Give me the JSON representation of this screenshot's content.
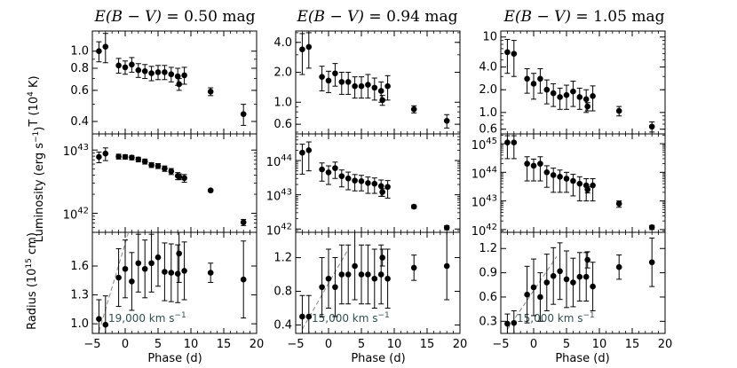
{
  "figure": {
    "ylabel_temp": "T (10",
    "ylabel_temp_exp": "4",
    "ylabel_temp_unit": " K)",
    "ylabel_lum": "Luminosity (erg s",
    "ylabel_lum_exp": "−1",
    "ylabel_lum_close": ")",
    "ylabel_rad": "Radius (10",
    "ylabel_rad_exp": "15",
    "ylabel_rad_unit": " cm)",
    "xlabel": "Phase (d)",
    "xticks": [
      "−5",
      "0",
      "5",
      "10",
      "15",
      "20"
    ],
    "panel_columns": [
      "E(B − V) = 0.50 mag",
      "E(B − V) = 0.94 mag",
      "E(B − V) = 1.05 mag"
    ]
  },
  "chart_data": [
    {
      "type": "scatter",
      "title": "E(B − V) = 0.50 mag",
      "title_ebv": "E(B − V)",
      "title_value": " = 0.50 mag",
      "xlim": [
        -5,
        20
      ],
      "phase": [
        -4,
        -3,
        -1,
        0,
        1,
        2,
        3,
        4,
        5,
        6,
        7,
        8,
        8.2,
        9,
        13,
        18
      ],
      "temperature": {
        "ylabel": "T (10^4 K)",
        "scale": "log",
        "ylim": [
          0.34,
          1.3
        ],
        "ticks": [
          0.4,
          0.6,
          0.8,
          1.0
        ],
        "tick_labels": [
          "0.4",
          "0.6",
          "0.8",
          "1.0"
        ],
        "values": [
          1.0,
          1.06,
          0.83,
          0.81,
          0.84,
          0.78,
          0.77,
          0.75,
          0.76,
          0.76,
          0.74,
          0.72,
          0.65,
          0.73,
          0.59,
          0.44
        ],
        "errors": [
          0.13,
          0.2,
          0.08,
          0.07,
          0.08,
          0.07,
          0.07,
          0.07,
          0.07,
          0.07,
          0.07,
          0.08,
          0.05,
          0.08,
          0.03,
          0.06
        ]
      },
      "luminosity": {
        "ylabel": "Luminosity (erg s^-1)",
        "scale": "log",
        "ylim": [
          5e+41,
          1.8e+43
        ],
        "ticks": [
          1e+42,
          1e+43
        ],
        "tick_labels": [
          "10^42",
          "10^43"
        ],
        "values": [
          7.8e+42,
          8.8e+42,
          7.9e+42,
          7.8e+42,
          7.6e+42,
          7.1e+42,
          6.6e+42,
          5.8e+42,
          5.6e+42,
          5.1e+42,
          4.6e+42,
          3.9e+42,
          3.8e+42,
          3.6e+42,
          2.3e+42,
          7.2e+41
        ],
        "errors": [
          1.5e+42,
          2e+42,
          7e+41,
          6e+41,
          6e+41,
          6e+41,
          6e+41,
          5e+41,
          5e+41,
          5e+41,
          5e+41,
          5e+41,
          4e+41,
          5e+41,
          1e+41,
          8e+40
        ]
      },
      "radius": {
        "ylabel": "Radius (10^15 cm)",
        "scale": "linear",
        "ylim": [
          0.9,
          1.95
        ],
        "ticks": [
          1.0,
          1.3,
          1.6
        ],
        "tick_labels": [
          "1.0",
          "1.3",
          "1.6"
        ],
        "values": [
          1.05,
          0.99,
          1.48,
          1.57,
          1.44,
          1.63,
          1.57,
          1.63,
          1.69,
          1.54,
          1.53,
          1.52,
          1.73,
          1.55,
          1.53,
          1.46
        ],
        "errors": [
          0.2,
          0.3,
          0.3,
          0.3,
          0.3,
          0.3,
          0.3,
          0.3,
          0.3,
          0.3,
          0.3,
          0.3,
          0.3,
          0.3,
          0.1,
          0.4
        ],
        "velocity_line": {
          "x": [
            -4,
            0.5
          ],
          "y": [
            0.92,
            1.95
          ]
        },
        "annotation": "19,000 km s",
        "annotation_exp": "−1"
      }
    },
    {
      "type": "scatter",
      "title": "E(B − V) = 0.94 mag",
      "title_ebv": "E(B − V)",
      "title_value": " = 0.94 mag",
      "xlim": [
        -5,
        20
      ],
      "phase": [
        -4,
        -3,
        -1,
        0,
        1,
        2,
        3,
        4,
        5,
        6,
        7,
        8,
        8.2,
        9,
        13,
        18
      ],
      "temperature": {
        "ylabel": "T (10^4 K)",
        "scale": "log",
        "ylim": [
          0.48,
          5.2
        ],
        "ticks": [
          0.6,
          1.0,
          2.0,
          4.0
        ],
        "tick_labels": [
          "0.6",
          "1.0",
          "2.0",
          "4.0"
        ],
        "values": [
          3.4,
          3.6,
          1.8,
          1.65,
          1.95,
          1.6,
          1.6,
          1.45,
          1.45,
          1.5,
          1.4,
          1.3,
          1.05,
          1.45,
          0.85,
          0.65
        ],
        "errors": [
          1.5,
          1.4,
          0.5,
          0.4,
          0.5,
          0.4,
          0.4,
          0.35,
          0.35,
          0.4,
          0.35,
          0.3,
          0.12,
          0.4,
          0.07,
          0.1
        ]
      },
      "luminosity": {
        "ylabel": "Luminosity (erg s^-1)",
        "scale": "log",
        "ylim": [
          8e+41,
          6e+44
        ],
        "ticks": [
          1e+42,
          1e+43,
          1e+44
        ],
        "tick_labels": [
          "10^42",
          "10^43",
          "10^44"
        ],
        "values": [
          1.7e+44,
          2e+44,
          5.5e+43,
          4.5e+43,
          6e+43,
          3.5e+43,
          3e+43,
          2.6e+43,
          2.5e+43,
          2.2e+43,
          2.1e+43,
          1.8e+43,
          1.2e+43,
          1.7e+43,
          4.5e+42,
          1.1e+42
        ],
        "errors": [
          1.3e+44,
          1.5e+44,
          3e+43,
          2.5e+43,
          3e+43,
          1.8e+43,
          1.6e+43,
          1.3e+43,
          1.2e+43,
          1.1e+43,
          1e+43,
          9e+42,
          3e+42,
          9e+42,
          5e+41,
          1.5e+41
        ]
      },
      "radius": {
        "ylabel": "Radius (10^15 cm)",
        "scale": "linear",
        "ylim": [
          0.3,
          1.5
        ],
        "ticks": [
          0.4,
          0.8,
          1.2
        ],
        "tick_labels": [
          "0.4",
          "0.8",
          "1.2"
        ],
        "values": [
          0.5,
          0.5,
          0.85,
          0.95,
          0.85,
          1.0,
          1.0,
          1.1,
          1.0,
          1.0,
          0.95,
          1.0,
          1.2,
          0.95,
          1.08,
          1.1
        ],
        "errors": [
          0.25,
          0.25,
          0.35,
          0.35,
          0.35,
          0.35,
          0.35,
          0.4,
          0.35,
          0.35,
          0.35,
          0.35,
          0.1,
          0.35,
          0.15,
          0.4
        ],
        "velocity_line": {
          "x": [
            -4,
            3
          ],
          "y": [
            0.35,
            1.3
          ]
        },
        "annotation": "15,000 km s",
        "annotation_exp": "−1"
      }
    },
    {
      "type": "scatter",
      "title": "E(B − V) = 1.05 mag",
      "title_ebv": "E(B − V)",
      "title_value": " = 1.05 mag",
      "xlim": [
        -5,
        20
      ],
      "phase": [
        -4,
        -3,
        -1,
        0,
        1,
        2,
        3,
        4,
        5,
        6,
        7,
        8,
        8.2,
        9,
        13,
        18
      ],
      "temperature": {
        "ylabel": "T (10^4 K)",
        "scale": "log",
        "ylim": [
          0.52,
          12
        ],
        "ticks": [
          0.6,
          1.0,
          2.0,
          4.0,
          10
        ],
        "tick_labels": [
          "0.6",
          "1.0",
          "2.0",
          "4.0",
          "10"
        ],
        "values": [
          6.3,
          6.0,
          2.8,
          2.4,
          2.8,
          2.0,
          1.8,
          1.6,
          1.7,
          1.9,
          1.6,
          1.5,
          1.2,
          1.65,
          1.05,
          0.65
        ],
        "errors": [
          3.0,
          3.0,
          1.0,
          0.9,
          1.0,
          0.7,
          0.6,
          0.5,
          0.6,
          0.7,
          0.5,
          0.5,
          0.15,
          0.6,
          0.15,
          0.1
        ]
      },
      "luminosity": {
        "ylabel": "Luminosity (erg s^-1)",
        "scale": "log",
        "ylim": [
          8e+41,
          2.2e+45
        ],
        "ticks": [
          1e+42,
          1e+43,
          1e+44,
          1e+45
        ],
        "tick_labels": [
          "10^42",
          "10^43",
          "10^44",
          "10^45"
        ],
        "values": [
          1.1e+45,
          1.1e+45,
          2e+44,
          1.7e+44,
          2e+44,
          1e+44,
          8e+43,
          7e+43,
          6e+43,
          5e+43,
          4e+43,
          3.5e+43,
          2.5e+43,
          3.5e+43,
          8e+42,
          1.2e+42
        ],
        "errors": [
          8e+44,
          8e+44,
          1.5e+44,
          1.2e+44,
          1.5e+44,
          7e+43,
          6e+43,
          5e+43,
          4e+43,
          3.5e+43,
          3e+43,
          2.5e+43,
          6e+42,
          2.5e+43,
          2e+42,
          2e+41
        ]
      },
      "radius": {
        "ylabel": "Radius (10^15 cm)",
        "scale": "linear",
        "ylim": [
          0.15,
          1.4
        ],
        "ticks": [
          0.3,
          0.6,
          0.9,
          1.2
        ],
        "tick_labels": [
          "0.3",
          "0.6",
          "0.9",
          "1.2"
        ],
        "values": [
          0.27,
          0.28,
          0.63,
          0.72,
          0.6,
          0.78,
          0.86,
          0.92,
          0.82,
          0.78,
          0.85,
          0.85,
          1.06,
          0.73,
          0.97,
          1.03
        ],
        "errors": [
          0.12,
          0.15,
          0.35,
          0.35,
          0.3,
          0.35,
          0.35,
          0.35,
          0.35,
          0.3,
          0.3,
          0.3,
          0.1,
          0.3,
          0.15,
          0.3
        ],
        "velocity_line": {
          "x": [
            -4,
            3.5
          ],
          "y": [
            0.2,
            1.1
          ]
        },
        "annotation": "15,000 km s",
        "annotation_exp": "−1"
      }
    }
  ]
}
